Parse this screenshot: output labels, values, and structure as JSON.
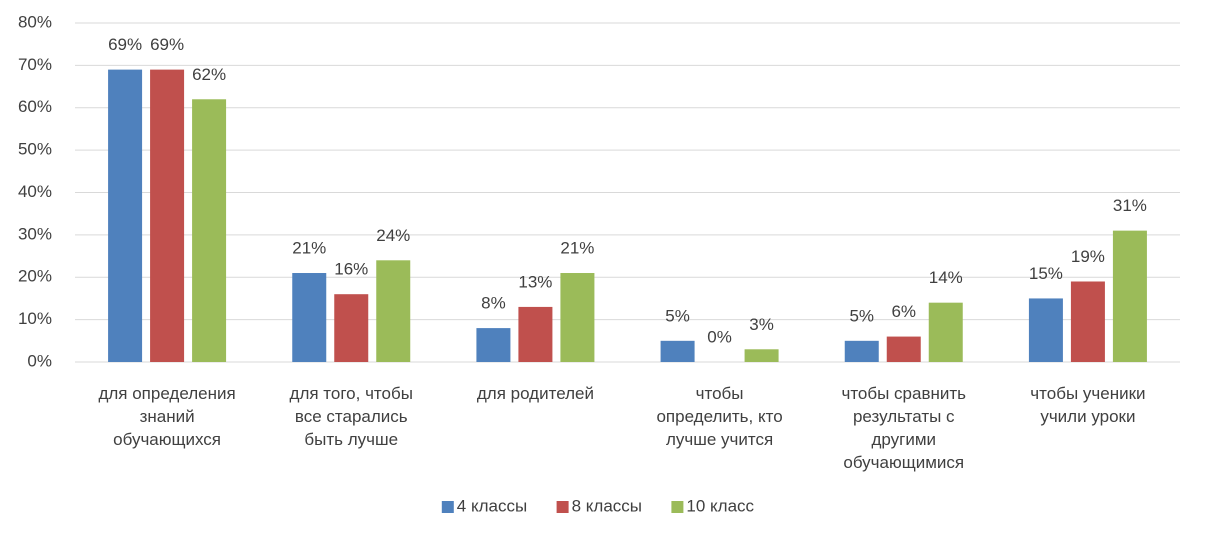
{
  "chart_data": {
    "type": "bar",
    "categories": [
      "для определения знаний обучающихся",
      "для того, чтобы все старались быть лучше",
      "для родителей",
      "чтобы определить, кто лучше учится",
      "чтобы сравнить результаты с другими обучающимися",
      "чтобы ученики учили уроки"
    ],
    "series": [
      {
        "name": "4 классы",
        "color": "#4f81bd",
        "values": [
          69,
          21,
          8,
          5,
          5,
          15
        ],
        "value_labels": [
          "69%",
          "21%",
          "8%",
          "5%",
          "5%",
          "15%"
        ]
      },
      {
        "name": "8 классы",
        "color": "#c0504d",
        "values": [
          69,
          16,
          13,
          0,
          6,
          19
        ],
        "value_labels": [
          "69%",
          "16%",
          "13%",
          "0%",
          "6%",
          "19%"
        ]
      },
      {
        "name": "10 класс",
        "color": "#9bbb59",
        "values": [
          62,
          24,
          21,
          3,
          14,
          31
        ],
        "value_labels": [
          "62%",
          "24%",
          "21%",
          "3%",
          "14%",
          "31%"
        ]
      }
    ],
    "ylim": [
      0,
      80
    ],
    "yticks": [
      {
        "value": 0,
        "label": "0%"
      },
      {
        "value": 10,
        "label": "10%"
      },
      {
        "value": 20,
        "label": "20%"
      },
      {
        "value": 30,
        "label": "30%"
      },
      {
        "value": 40,
        "label": "40%"
      },
      {
        "value": 50,
        "label": "50%"
      },
      {
        "value": 60,
        "label": "60%"
      },
      {
        "value": 70,
        "label": "70%"
      },
      {
        "value": 80,
        "label": "80%"
      }
    ],
    "grid": true,
    "legend": "bottom"
  }
}
